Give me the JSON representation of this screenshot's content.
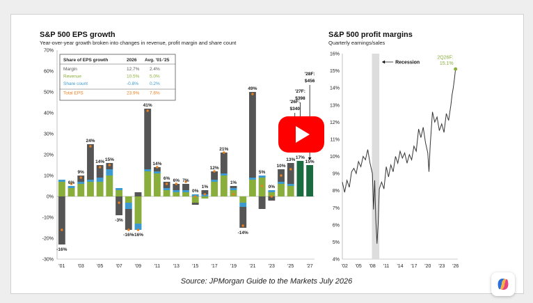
{
  "source": "Source: JPMorgan Guide to the Markets July 2026",
  "colors": {
    "margin": "#555555",
    "revenue": "#8aae3c",
    "share_count": "#3d9ad1",
    "total_eps": "#e8801f",
    "forecast": "#1a6b3f",
    "line": "#333333",
    "recession": "#dddddd",
    "margin_point": "#8aae3c",
    "play": "#ff0000"
  },
  "icons": {
    "play": "play-icon",
    "copilot": "copilot-icon",
    "arrow": "arrow-left-icon"
  },
  "chart_data": [
    {
      "type": "bar",
      "title": "S&P 500 EPS growth",
      "subtitle": "Year-over-year growth broken into changes in revenue, profit margin and share count",
      "ylim": [
        -30,
        70
      ],
      "yticks": [
        "70%",
        "60%",
        "50%",
        "40%",
        "30%",
        "20%",
        "10%",
        "0%",
        "-10%",
        "-20%",
        "-30%"
      ],
      "xticks": [
        "'01",
        "'03",
        "'05",
        "'07",
        "'09",
        "'11",
        "'13",
        "'15",
        "'17",
        "'19",
        "'21",
        "'23",
        "'25",
        "'27"
      ],
      "categories": [
        "2001",
        "2002",
        "2003",
        "2004",
        "2005",
        "2006",
        "2007",
        "2008",
        "2009",
        "2010",
        "2011",
        "2012",
        "2013",
        "2014",
        "2015",
        "2016",
        "2017",
        "2018",
        "2019",
        "2020",
        "2021",
        "2022",
        "2023",
        "2024",
        "2025",
        "2026",
        "2027"
      ],
      "series": [
        {
          "name": "Margin",
          "values": [
            -23,
            0,
            3,
            17,
            6,
            3,
            -9,
            -10,
            2,
            29,
            2,
            3,
            3,
            3,
            -1,
            2,
            4,
            10,
            1,
            -10,
            41,
            -6,
            -2,
            6,
            10,
            12,
            0
          ]
        },
        {
          "name": "Revenue",
          "values": [
            7,
            4,
            6,
            7,
            7,
            10,
            3,
            -3,
            -13,
            12,
            11,
            3,
            2,
            2,
            -3,
            -1,
            7,
            10,
            3,
            -3,
            8,
            9,
            2,
            6,
            5,
            5,
            0
          ]
        },
        {
          "name": "Share count",
          "values": [
            1,
            1,
            1,
            1,
            2,
            3,
            1,
            -3,
            -3,
            1,
            1,
            1,
            1,
            1,
            1,
            1,
            1,
            1,
            1,
            -2,
            1,
            1,
            1,
            1,
            1,
            1,
            0
          ]
        }
      ],
      "total_eps": [
        -16,
        6,
        9,
        24,
        14,
        15,
        -3,
        -16,
        -16,
        41,
        14,
        6,
        6,
        7,
        0,
        1,
        12,
        21,
        1,
        -14,
        49,
        5,
        0,
        10,
        13,
        17,
        15
      ],
      "labels": [
        "-16%",
        "6%",
        "9%",
        "24%",
        "14%",
        "15%",
        "-3%",
        "-16%",
        "-16%",
        "41%",
        "14%",
        "6%",
        "6%",
        "7%",
        "0%",
        "1%",
        "12%",
        "21%",
        "1%",
        "-14%",
        "49%",
        "5%",
        "0%",
        "10%",
        "13%",
        "17%",
        "15%"
      ],
      "forecast_from_index": 25,
      "annotations": [
        {
          "text": [
            "'26F:",
            "$340"
          ],
          "index": 24
        },
        {
          "text": [
            "'27F:",
            "$398"
          ],
          "index": 25
        },
        {
          "text": [
            "'28F:",
            "$456"
          ],
          "index": 26
        }
      ],
      "table": {
        "headers": [
          "Share of EPS growth",
          "2026",
          "Avg. '01-'25"
        ],
        "rows": [
          {
            "label": "Margin",
            "v2026": "12.7%",
            "avg": "2.4%",
            "color_key": "margin"
          },
          {
            "label": "Revenue",
            "v2026": "10.5%",
            "avg": "5.0%",
            "color_key": "revenue"
          },
          {
            "label": "Share count",
            "v2026": "-0.8%",
            "avg": "0.2%",
            "color_key": "share_count"
          },
          {
            "label": "Total EPS",
            "v2026": "23.9%",
            "avg": "7.6%",
            "color_key": "total_eps"
          }
        ]
      }
    },
    {
      "type": "line",
      "title": "S&P 500 profit margins",
      "subtitle": "Quarterly earnings/sales",
      "ylim": [
        4,
        16
      ],
      "yticks": [
        "16%",
        "15%",
        "14%",
        "13%",
        "12%",
        "11%",
        "10%",
        "9%",
        "8%",
        "7%",
        "6%",
        "5%",
        "4%"
      ],
      "xticks": [
        "'02",
        "'05",
        "'08",
        "'11",
        "'14",
        "'17",
        "'20",
        "'23",
        "'26"
      ],
      "xlim": [
        2001.5,
        2026.5
      ],
      "x": [
        2001.5,
        2002,
        2002.5,
        2003,
        2003.5,
        2004,
        2004.5,
        2005,
        2005.5,
        2006,
        2006.5,
        2007,
        2007.5,
        2008,
        2008.25,
        2008.5,
        2008.75,
        2009,
        2009.25,
        2009.5,
        2010,
        2010.5,
        2011,
        2011.5,
        2012,
        2012.5,
        2013,
        2013.5,
        2014,
        2014.5,
        2015,
        2015.5,
        2016,
        2016.5,
        2017,
        2017.5,
        2018,
        2018.5,
        2019,
        2019.5,
        2020,
        2020.25,
        2020.5,
        2021,
        2021.5,
        2022,
        2022.5,
        2023,
        2023.5,
        2024,
        2024.5,
        2025,
        2025.25,
        2025.5,
        2025.75,
        2026
      ],
      "y": [
        8.5,
        7.9,
        8.6,
        8.2,
        9.1,
        9.3,
        9.0,
        9.7,
        9.4,
        10.0,
        9.8,
        10.4,
        9.6,
        9.0,
        6.9,
        8.6,
        6.3,
        4.9,
        6.1,
        8.1,
        8.5,
        8.1,
        9.4,
        8.8,
        9.5,
        9.1,
        10.0,
        9.6,
        10.3,
        9.9,
        10.2,
        9.6,
        10.1,
        9.8,
        10.6,
        10.3,
        11.6,
        11.1,
        11.7,
        10.8,
        10.2,
        9.1,
        10.6,
        12.6,
        12.0,
        12.3,
        11.5,
        11.9,
        11.4,
        12.5,
        12.1,
        13.0,
        13.6,
        14.0,
        14.5,
        15.1
      ],
      "recession": {
        "label": "Recession",
        "x0": 2007.9,
        "x1": 2009.5
      },
      "point_annotation": {
        "label": [
          "2Q26F:",
          "15.1%"
        ],
        "x": 2026,
        "y": 15.1
      }
    }
  ]
}
